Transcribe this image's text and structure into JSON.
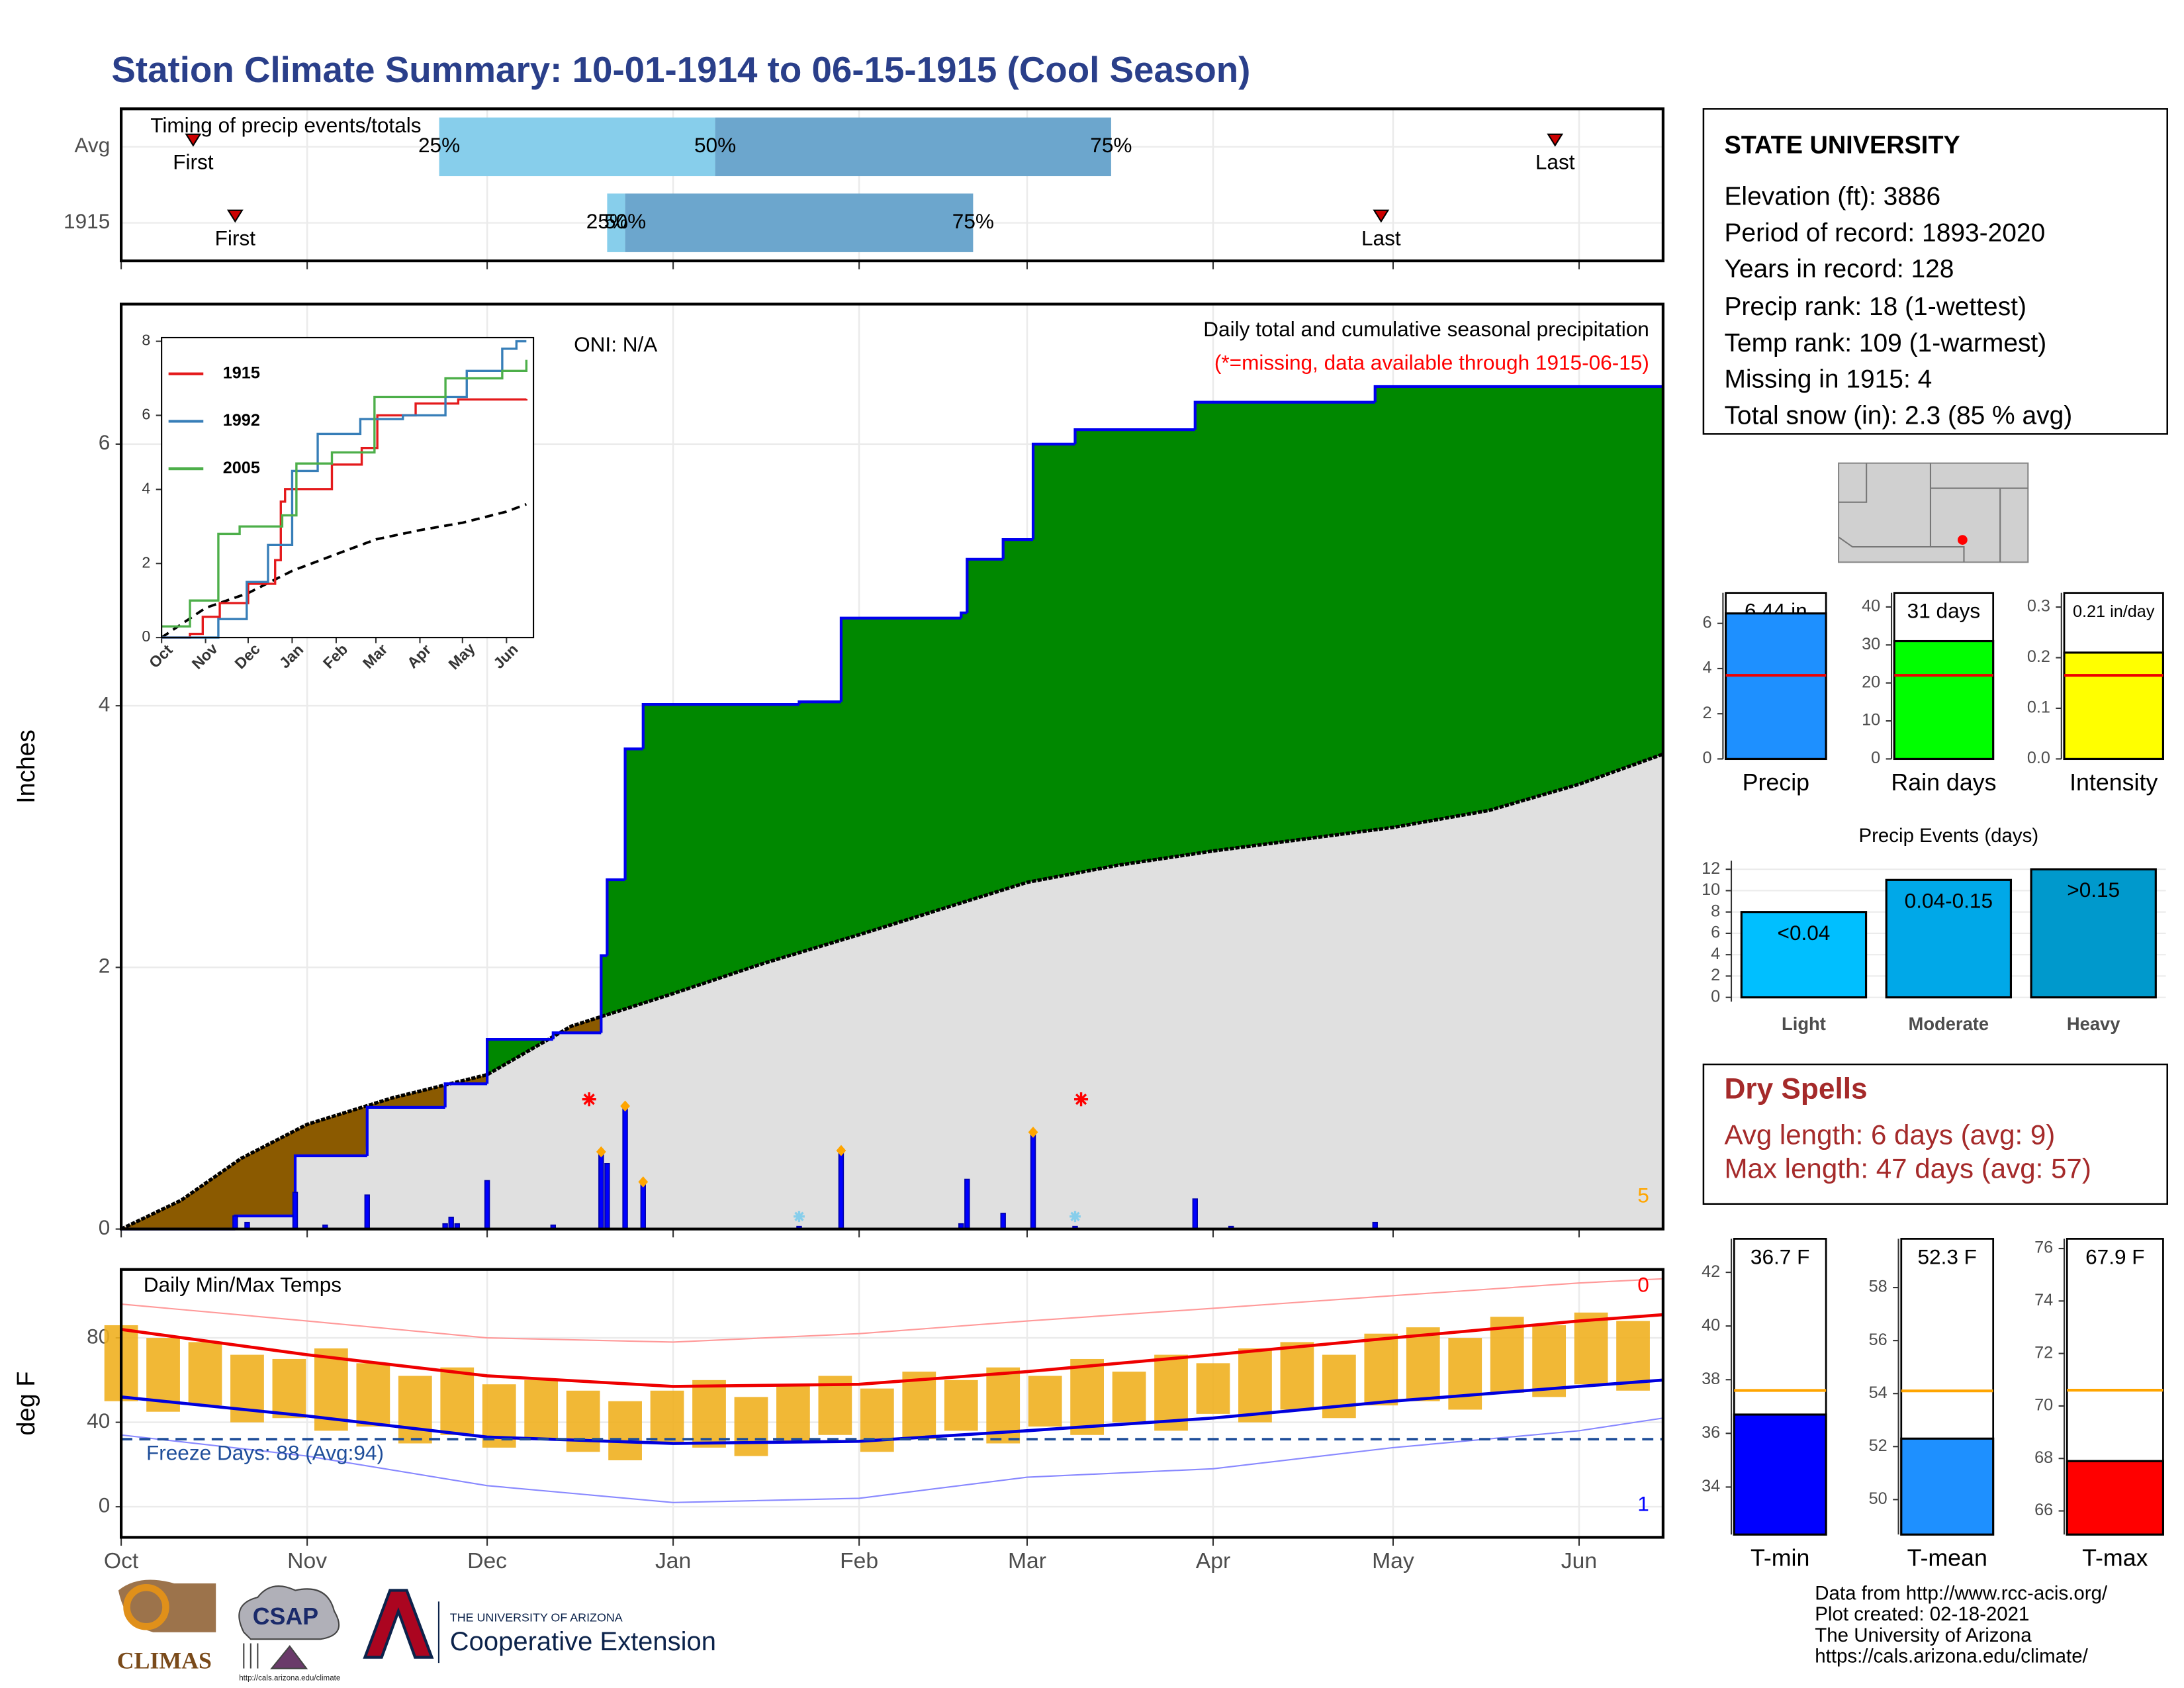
{
  "title": "Station Climate Summary: 10-01-1914 to 06-15-1915 (Cool Season)",
  "station": {
    "name": "STATE UNIVERSITY",
    "lines": [
      "Elevation (ft): 3886",
      "Period of record: 1893-2020",
      "Years in record: 128",
      "Precip rank: 18 (1-wettest)",
      "Temp rank: 109 (1-warmest)",
      "Missing in 1915: 4",
      "Total snow (in): 2.3 (85 % avg)"
    ]
  },
  "dry_spells": {
    "title": "Dry Spells",
    "lines": [
      "Avg length: 6 days (avg: 9)",
      "Max length: 47 days (avg: 57)"
    ]
  },
  "footer": {
    "logos": [
      "CLIMAS",
      "CSAP",
      "http://cals.arizona.edu/climate",
      "THE UNIVERSITY OF ARIZONA",
      "Cooperative Extension"
    ],
    "credits": [
      "Data from http://www.rcc-acis.org/",
      "Plot created: 02-18-2021",
      "The University of Arizona",
      "https://cals.arizona.edu/climate/"
    ]
  },
  "chart_data": [
    {
      "type": "timing",
      "title": "Timing of precip events/totals",
      "xlim": [
        0,
        257
      ],
      "xticks": [
        0,
        31,
        61,
        92,
        123,
        151,
        182,
        212,
        243
      ],
      "labels": {
        "first": "First",
        "q25": "25%",
        "q50": "50%",
        "q75": "75%",
        "last": "Last"
      },
      "colors": {
        "lower": "#87ceeb",
        "upper": "#6ca6cd",
        "marker": "#cc0000"
      },
      "rows": [
        {
          "name": "Avg",
          "first": 12,
          "q25": 53,
          "q50": 99,
          "q75": 165,
          "last": 239
        },
        {
          "name": "1915",
          "first": 19,
          "q25": 81,
          "q50": 84,
          "q75": 142,
          "last": 210
        }
      ]
    },
    {
      "type": "area",
      "title": "Daily total and cumulative seasonal precipitation",
      "subtitle": "(*=missing, data available through 1915-06-15)",
      "annotation": "ONI: N/A",
      "corner_label": "5",
      "corner_color": "#ffa500",
      "ylabel": "Inches",
      "xlim": [
        0,
        257
      ],
      "ylim": [
        0,
        7.07
      ],
      "yticks": [
        0,
        2,
        4,
        6
      ],
      "xticks": [
        0,
        31,
        61,
        92,
        123,
        151,
        182,
        212,
        243
      ],
      "grid": true,
      "above_color": "#008800",
      "below_color": "#8b5a00",
      "average_fill": "#e0e0e0",
      "average": {
        "color": "#000000",
        "x": [
          0,
          10,
          20,
          31,
          45,
          61,
          75,
          92,
          107,
          123,
          137,
          151,
          166,
          182,
          197,
          212,
          228,
          243,
          257
        ],
        "values": [
          0,
          0.22,
          0.54,
          0.8,
          1.0,
          1.18,
          1.55,
          1.8,
          2.03,
          2.25,
          2.45,
          2.65,
          2.78,
          2.89,
          2.98,
          3.07,
          3.2,
          3.4,
          3.63
        ]
      },
      "observed": {
        "color": "#0000ee",
        "x": [
          0,
          19,
          29,
          41,
          54,
          61,
          72,
          80,
          81,
          84,
          87,
          113,
          120,
          140,
          141,
          147,
          152,
          159,
          179,
          209
        ],
        "values": [
          0,
          0.1,
          0.56,
          0.93,
          1.11,
          1.45,
          1.5,
          2.09,
          2.67,
          3.67,
          4.01,
          4.03,
          4.67,
          4.71,
          5.12,
          5.27,
          6.0,
          6.11,
          6.32,
          6.44
        ]
      },
      "daily": {
        "color": "#0000ff",
        "x": [
          19,
          21,
          29,
          34,
          41,
          54,
          55,
          56,
          61,
          72,
          80,
          81,
          84,
          87,
          113,
          120,
          140,
          141,
          147,
          152,
          159,
          179,
          185,
          209
        ],
        "values": [
          0.1,
          0.05,
          0.28,
          0.03,
          0.26,
          0.04,
          0.09,
          0.04,
          0.37,
          0.03,
          0.59,
          0.5,
          0.94,
          0.36,
          0.02,
          0.6,
          0.04,
          0.38,
          0.12,
          0.74,
          0.02,
          0.23,
          0.02,
          0.05
        ]
      },
      "record_x": [
        80,
        84,
        87,
        120,
        152
      ],
      "record_color": "#ffa500",
      "missing_x": [
        78,
        160
      ],
      "missing_color": "#ff0000",
      "snow_x": [
        113,
        159
      ],
      "snow_color": "#87ceeb"
    },
    {
      "type": "line",
      "xlim": [
        0,
        262
      ],
      "ylim": [
        0,
        8.1
      ],
      "yticks": [
        0,
        2,
        4,
        6,
        8
      ],
      "xticks": [
        {
          "value": 0,
          "label": "Oct"
        },
        {
          "value": 31,
          "label": "Nov"
        },
        {
          "value": 61,
          "label": "Dec"
        },
        {
          "value": 92,
          "label": "Jan"
        },
        {
          "value": 123,
          "label": "Feb"
        },
        {
          "value": 151,
          "label": "Mar"
        },
        {
          "value": 182,
          "label": "Apr"
        },
        {
          "value": 212,
          "label": "May"
        },
        {
          "value": 243,
          "label": "Jun"
        }
      ],
      "series": [
        {
          "name": "1915",
          "color": "#e41a1c",
          "x": [
            0,
            20,
            29,
            41,
            61,
            80,
            84,
            87,
            120,
            141,
            152,
            179,
            209,
            257
          ],
          "values": [
            0,
            0.1,
            0.56,
            0.93,
            1.45,
            2.09,
            3.67,
            4.01,
            4.67,
            5.12,
            6.0,
            6.32,
            6.43,
            6.44
          ]
        },
        {
          "name": "1992",
          "color": "#377eb8",
          "x": [
            0,
            40,
            60,
            75,
            92,
            110,
            140,
            170,
            200,
            215,
            240,
            250,
            257
          ],
          "values": [
            0,
            0.5,
            1.5,
            2.5,
            4.5,
            5.5,
            5.9,
            6.0,
            6.5,
            7.2,
            7.8,
            8.0,
            8.0
          ]
        },
        {
          "name": "2005",
          "color": "#4daf4a",
          "x": [
            0,
            20,
            40,
            55,
            85,
            95,
            120,
            150,
            175,
            200,
            240,
            257
          ],
          "values": [
            0.3,
            1.0,
            2.8,
            3.0,
            3.3,
            4.7,
            5.0,
            6.5,
            6.5,
            7.0,
            7.2,
            7.5
          ]
        }
      ],
      "average": {
        "color": "#000000",
        "x": [
          0,
          31,
          61,
          92,
          123,
          151,
          182,
          212,
          243,
          257
        ],
        "values": [
          0,
          0.8,
          1.2,
          1.8,
          2.25,
          2.65,
          2.9,
          3.1,
          3.4,
          3.6
        ]
      }
    },
    {
      "type": "range",
      "title": "Daily Min/Max Temps",
      "annotation": "Freeze Days: 88 (Avg:94)",
      "ylabel": "deg F",
      "xlim": [
        0,
        257
      ],
      "ylim": [
        -14.5,
        112.4
      ],
      "yticks": [
        0,
        40,
        80
      ],
      "grid": true,
      "xticks": [
        {
          "value": 0,
          "label": "Oct"
        },
        {
          "value": 31,
          "label": "Nov"
        },
        {
          "value": 61,
          "label": "Dec"
        },
        {
          "value": 92,
          "label": "Jan"
        },
        {
          "value": 123,
          "label": "Feb"
        },
        {
          "value": 151,
          "label": "Mar"
        },
        {
          "value": 182,
          "label": "Apr"
        },
        {
          "value": 212,
          "label": "May"
        },
        {
          "value": 243,
          "label": "Jun"
        }
      ],
      "bar_color": "#f0b020",
      "freeze": 32,
      "freeze_color": "#1f4e9a",
      "x": [
        0,
        7,
        14,
        21,
        28,
        35,
        42,
        49,
        56,
        63,
        70,
        77,
        84,
        91,
        98,
        105,
        112,
        119,
        126,
        133,
        140,
        147,
        154,
        161,
        168,
        175,
        182,
        189,
        196,
        203,
        210,
        217,
        224,
        231,
        238,
        245,
        252
      ],
      "high": [
        86,
        80,
        78,
        72,
        70,
        75,
        68,
        62,
        66,
        58,
        60,
        55,
        50,
        55,
        60,
        52,
        58,
        62,
        56,
        64,
        60,
        66,
        62,
        70,
        64,
        72,
        68,
        75,
        78,
        72,
        82,
        85,
        80,
        90,
        86,
        92,
        88
      ],
      "low": [
        50,
        45,
        48,
        40,
        42,
        36,
        38,
        30,
        34,
        28,
        32,
        26,
        22,
        30,
        28,
        24,
        30,
        34,
        26,
        32,
        36,
        30,
        38,
        34,
        40,
        36,
        44,
        40,
        46,
        42,
        48,
        50,
        46,
        54,
        52,
        58,
        55
      ],
      "lines": [
        {
          "color": "#ff9999",
          "width": 1,
          "x": [
            0,
            31,
            61,
            92,
            123,
            151,
            182,
            212,
            243,
            257
          ],
          "values": [
            96,
            88,
            80,
            78,
            82,
            88,
            94,
            100,
            106,
            108
          ]
        },
        {
          "color": "#8888ff",
          "width": 1,
          "x": [
            0,
            31,
            61,
            92,
            123,
            151,
            182,
            212,
            243,
            257
          ],
          "values": [
            34,
            24,
            10,
            2,
            4,
            14,
            18,
            28,
            36,
            42
          ]
        },
        {
          "color": "#ee0000",
          "width": 2.2,
          "x": [
            0,
            31,
            61,
            92,
            123,
            151,
            182,
            212,
            243,
            257
          ],
          "values": [
            84,
            72,
            62,
            57,
            58,
            64,
            72,
            80,
            88,
            91
          ]
        },
        {
          "color": "#0000dd",
          "width": 2.2,
          "x": [
            0,
            31,
            61,
            92,
            123,
            151,
            182,
            212,
            243,
            257
          ],
          "values": [
            52,
            43,
            33,
            30,
            31,
            36,
            42,
            50,
            57,
            60
          ]
        }
      ],
      "corner_labels": [
        {
          "text": "0",
          "color": "#ff0000"
        },
        {
          "text": "1",
          "color": "#0000ff"
        }
      ]
    },
    {
      "type": "bar",
      "categories": [
        "Precip"
      ],
      "values": [
        6.44
      ],
      "value_labels": [
        "6.44 in"
      ],
      "average": 3.7,
      "avg_color": "#ee0000",
      "color": "#1e90ff",
      "ylim": [
        0,
        7.35
      ],
      "yticks": [
        0,
        2,
        4,
        6
      ]
    },
    {
      "type": "bar",
      "categories": [
        "Rain days"
      ],
      "values": [
        31
      ],
      "value_labels": [
        "31 days"
      ],
      "average": 22,
      "avg_color": "#ee0000",
      "color": "#00ff00",
      "ylim": [
        0,
        43.7
      ],
      "yticks": [
        0,
        10,
        20,
        30,
        40
      ]
    },
    {
      "type": "bar",
      "categories": [
        "Intensity"
      ],
      "values": [
        0.21
      ],
      "value_labels": [
        "0.21 in/day"
      ],
      "average": 0.165,
      "avg_color": "#ee0000",
      "color": "#ffff00",
      "ylim": [
        0,
        0.328
      ],
      "yticks": [
        {
          "value": 0,
          "label": "0.0"
        },
        0.1,
        0.2,
        0.3
      ]
    },
    {
      "type": "bar",
      "title": "Precip Events (days)",
      "categories": [
        "Light",
        "Moderate",
        "Heavy"
      ],
      "values": [
        8,
        11,
        12
      ],
      "value_labels": [
        "<0.04",
        "0.04-0.15",
        ">0.15"
      ],
      "colors": [
        "#00bfff",
        "#00a8e8",
        "#0099cc"
      ],
      "ylim": [
        -0.4,
        12.8
      ],
      "yticks": [
        0,
        2,
        4,
        6,
        8,
        10,
        12
      ],
      "grid": true
    },
    {
      "type": "bar",
      "categories": [
        "T-min"
      ],
      "values": [
        36.7
      ],
      "value_labels": [
        "36.7 F"
      ],
      "average": 37.6,
      "avg_color": "#ffa500",
      "color": "#0000ff",
      "ylim": [
        32.23,
        43.25
      ],
      "yticks": [
        34,
        36,
        38,
        40,
        42
      ]
    },
    {
      "type": "bar",
      "categories": [
        "T-mean"
      ],
      "values": [
        52.3
      ],
      "value_labels": [
        "52.3 F"
      ],
      "average": 54.1,
      "avg_color": "#ffa500",
      "color": "#1e90ff",
      "ylim": [
        48.68,
        59.84
      ],
      "yticks": [
        50,
        52,
        54,
        56,
        58
      ]
    },
    {
      "type": "bar",
      "categories": [
        "T-max"
      ],
      "values": [
        67.9
      ],
      "value_labels": [
        "67.9 F"
      ],
      "average": 70.6,
      "avg_color": "#ffa500",
      "color": "#ff0000",
      "ylim": [
        65.1,
        76.37
      ],
      "yticks": [
        66,
        68,
        70,
        72,
        74,
        76
      ]
    }
  ]
}
